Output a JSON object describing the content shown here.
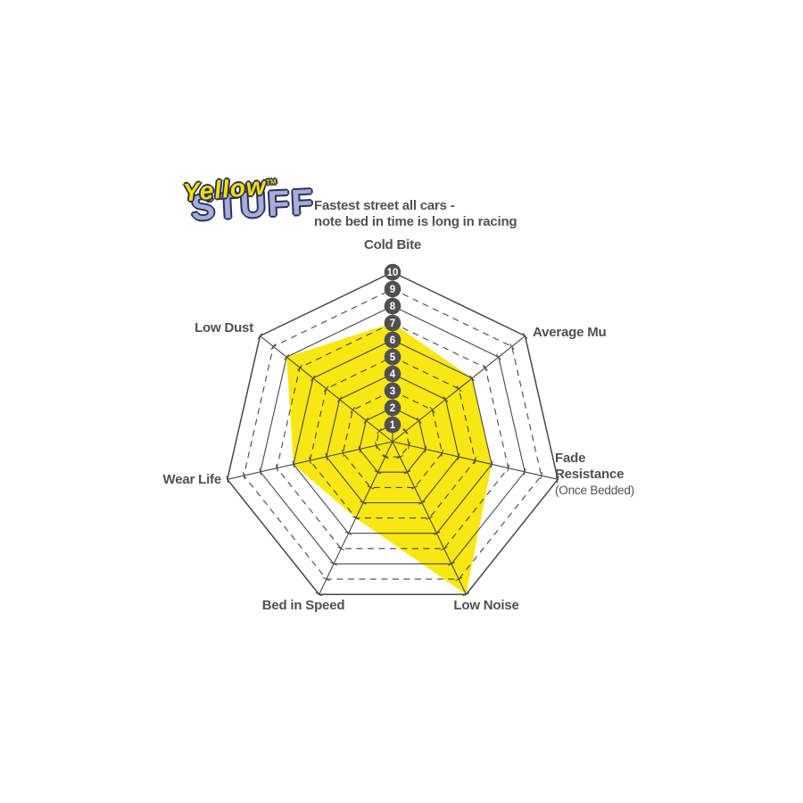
{
  "logo": {
    "word1": "Yellow",
    "tm": "TM",
    "word2": "STUFF"
  },
  "subtitle": {
    "line1": "Fastest street all cars -",
    "line2": "note bed in time is long in racing"
  },
  "chart_data": {
    "type": "radar",
    "axes": [
      {
        "label": "Cold Bite",
        "value": 7
      },
      {
        "label": "Average Mu",
        "value": 6
      },
      {
        "label": "Fade Resistance",
        "sublabel": "(Once Bedded)",
        "value": 6
      },
      {
        "label": "Low Noise",
        "value": 10
      },
      {
        "label": "Bed in Speed",
        "value": 5
      },
      {
        "label": "Wear Life",
        "value": 6
      },
      {
        "label": "Low Dust",
        "value": 8
      }
    ],
    "scale": {
      "min": 0,
      "max": 10,
      "tick_labels": [
        "1",
        "2",
        "3",
        "4",
        "5",
        "6",
        "7",
        "8",
        "9",
        "10"
      ]
    },
    "grid": {
      "rings": 10,
      "solid_rings": "even",
      "dashed_rings": "odd",
      "legend": "none"
    },
    "colors": {
      "fill": "#F8E713",
      "grid": "#47474A",
      "marker_bg": "#505052",
      "marker_text": "#FFFFFF",
      "label": "#4F5052"
    }
  }
}
